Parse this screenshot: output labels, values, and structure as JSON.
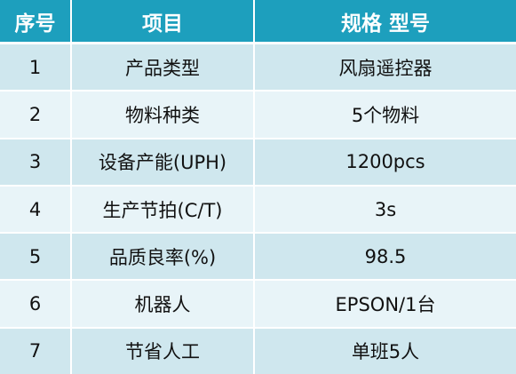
{
  "table": {
    "headers": [
      "序号",
      "项目",
      "规格 型号"
    ],
    "rows": [
      [
        "1",
        "产品类型",
        "风扇遥控器"
      ],
      [
        "2",
        "物料种类",
        "5个物料"
      ],
      [
        "3",
        "设备产能(UPH)",
        "1200pcs"
      ],
      [
        "4",
        "生产节拍(C/T)",
        "3s"
      ],
      [
        "5",
        "品质良率(%)",
        "98.5"
      ],
      [
        "6",
        "机器人",
        "EPSON/1台"
      ],
      [
        "7",
        "节省人工",
        "单班5人"
      ]
    ]
  },
  "colors": {
    "header_bg": "#1d9fbd",
    "row_odd_bg": "#cfe7ee",
    "row_even_bg": "#e8f4f8"
  }
}
